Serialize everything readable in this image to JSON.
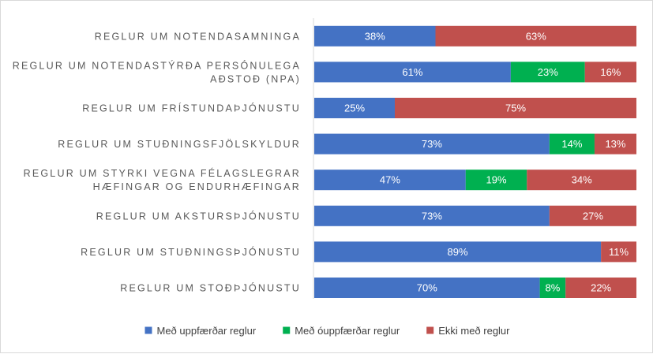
{
  "chart_data": {
    "type": "bar",
    "orientation": "horizontal",
    "stacked": "percent",
    "categories": [
      "REGLUR UM NOTENDASAMNINGA",
      "REGLUR UM NOTENDASTÝRÐA PERSÓNULEGA AÐSTOÐ (NPA)",
      "REGLUR UM FRÍSTUNDAÞJÓNUSTU",
      "REGLUR UM STUÐNINGSFJÖLSKYLDUR",
      "REGLUR UM STYRKI VEGNA FÉLAGSLEGRAR HÆFINGAR OG ENDURHÆFINGAR",
      "REGLUR UM AKSTURSÞJÓNUSTU",
      "REGLUR UM STUÐNINGSÞJÓNUSTU",
      "REGLUR UM STOÐÞJÓNUSTU"
    ],
    "category_lines": [
      [
        "REGLUR UM NOTENDASAMNINGA"
      ],
      [
        "REGLUR UM NOTENDASTÝRÐA PERSÓNULEGA",
        "AÐSTOÐ (NPA)"
      ],
      [
        "REGLUR UM FRÍSTUNDAÞJÓNUSTU"
      ],
      [
        "REGLUR UM STUÐNINGSFJÖLSKYLDUR"
      ],
      [
        "REGLUR UM STYRKI VEGNA FÉLAGSLEGRAR",
        "HÆFINGAR OG ENDURHÆFINGAR"
      ],
      [
        "REGLUR UM AKSTURSÞJÓNUSTU"
      ],
      [
        "REGLUR UM STUÐNINGSÞJÓNUSTU"
      ],
      [
        "REGLUR UM STOÐÞJÓNUSTU"
      ]
    ],
    "series": [
      {
        "name": "Með uppfærðar reglur",
        "color": "#4472c4",
        "values": [
          38,
          61,
          25,
          73,
          47,
          73,
          89,
          70
        ]
      },
      {
        "name": "Með óuppfærðar reglur",
        "color": "#00b050",
        "values": [
          0,
          23,
          0,
          14,
          19,
          0,
          0,
          8
        ]
      },
      {
        "name": "Ekki með reglur",
        "color": "#c0504d",
        "values": [
          63,
          16,
          75,
          13,
          34,
          27,
          11,
          22
        ]
      }
    ],
    "value_suffix": "%",
    "legend_position": "bottom",
    "grid": false
  }
}
